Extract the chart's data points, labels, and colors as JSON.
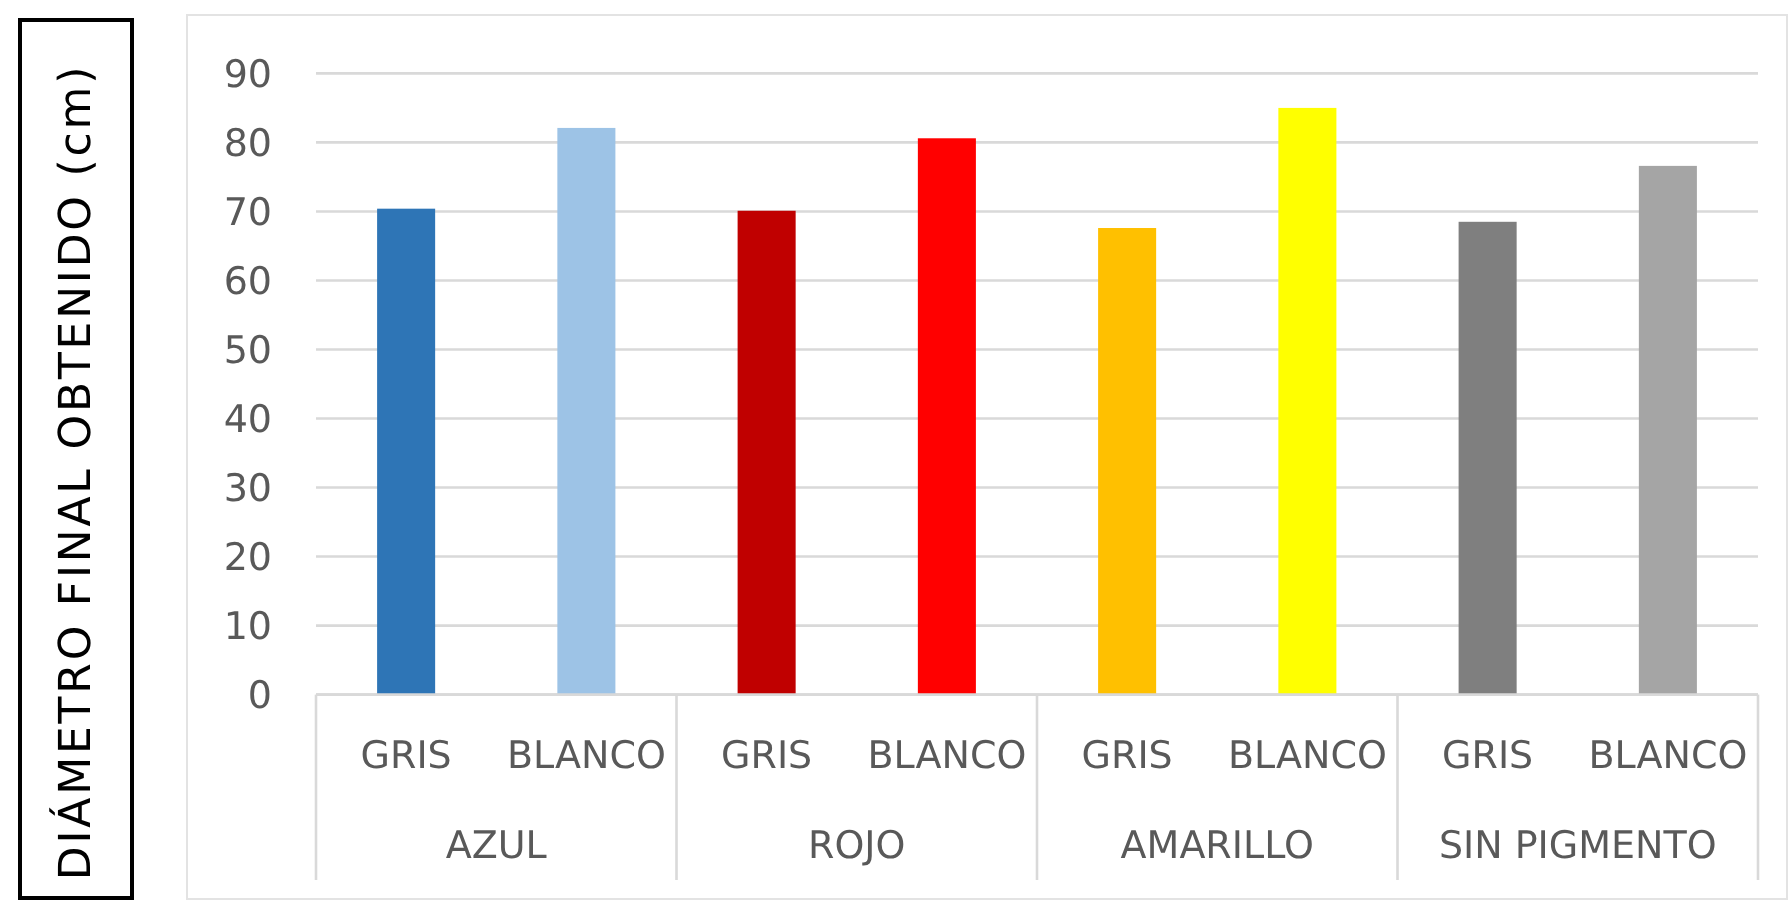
{
  "chart_data": {
    "type": "bar",
    "ylabel": "DIÁMETRO FINAL OBTENIDO (cm)",
    "categories": [
      "AZUL",
      "ROJO",
      "AMARILLO",
      "SIN PIGMENTO"
    ],
    "series": [
      {
        "name": "GRIS",
        "colors": [
          "#2e75b6",
          "#c00000",
          "#ffc000",
          "#7f7f7f"
        ],
        "values": [
          70.4,
          70.1,
          67.6,
          68.5
        ]
      },
      {
        "name": "BLANCO",
        "colors": [
          "#9dc3e6",
          "#ff0000",
          "#ffff00",
          "#a5a5a5"
        ],
        "values": [
          82.1,
          80.6,
          85.0,
          76.6
        ]
      }
    ],
    "ylim": [
      0,
      90
    ],
    "yticks": [
      0,
      10,
      20,
      30,
      40,
      50,
      60,
      70,
      80,
      90
    ],
    "grid": "y"
  }
}
